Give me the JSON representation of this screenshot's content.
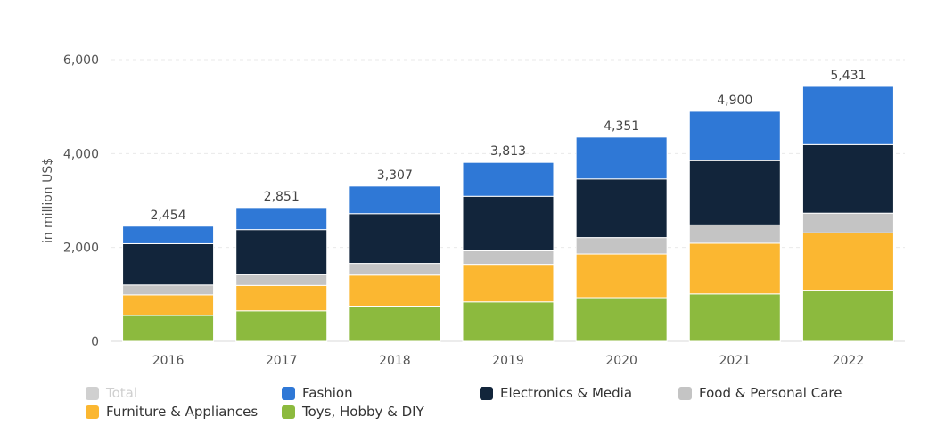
{
  "chart_data": {
    "type": "bar",
    "stacked": true,
    "ylabel": "in million US$",
    "ylim": [
      0,
      6000
    ],
    "yticks": [
      "0",
      "2,000",
      "4,000",
      "6,000"
    ],
    "grid": true,
    "legend_position": "bottom",
    "categories": [
      "2016",
      "2017",
      "2018",
      "2019",
      "2020",
      "2021",
      "2022"
    ],
    "totals": [
      "2,454",
      "2,851",
      "3,307",
      "3,813",
      "4,351",
      "4,900",
      "5,431"
    ],
    "series": [
      {
        "name": "Toys, Hobby & DIY",
        "color": "#8cba3e",
        "values": [
          550,
          650,
          750,
          840,
          930,
          1010,
          1090
        ]
      },
      {
        "name": "Furniture & Appliances",
        "color": "#fbb731",
        "values": [
          440,
          540,
          660,
          800,
          930,
          1080,
          1220
        ]
      },
      {
        "name": "Food & Personal Care",
        "color": "#c4c4c4",
        "values": [
          210,
          230,
          250,
          290,
          350,
          390,
          420
        ]
      },
      {
        "name": "Electronics & Media",
        "color": "#12253b",
        "values": [
          880,
          960,
          1060,
          1160,
          1250,
          1370,
          1460
        ]
      },
      {
        "name": "Fashion",
        "color": "#2f78d6",
        "values": [
          374,
          471,
          587,
          723,
          891,
          1050,
          1241
        ]
      }
    ]
  },
  "legend": [
    {
      "label": "Total",
      "color": "#d0d0d0",
      "faded": true
    },
    {
      "label": "Fashion",
      "color": "#2f78d6"
    },
    {
      "label": "Electronics & Media",
      "color": "#12253b"
    },
    {
      "label": "Food & Personal Care",
      "color": "#c4c4c4"
    },
    {
      "label": "Furniture & Appliances",
      "color": "#fbb731"
    },
    {
      "label": "Toys, Hobby & DIY",
      "color": "#8cba3e"
    }
  ]
}
